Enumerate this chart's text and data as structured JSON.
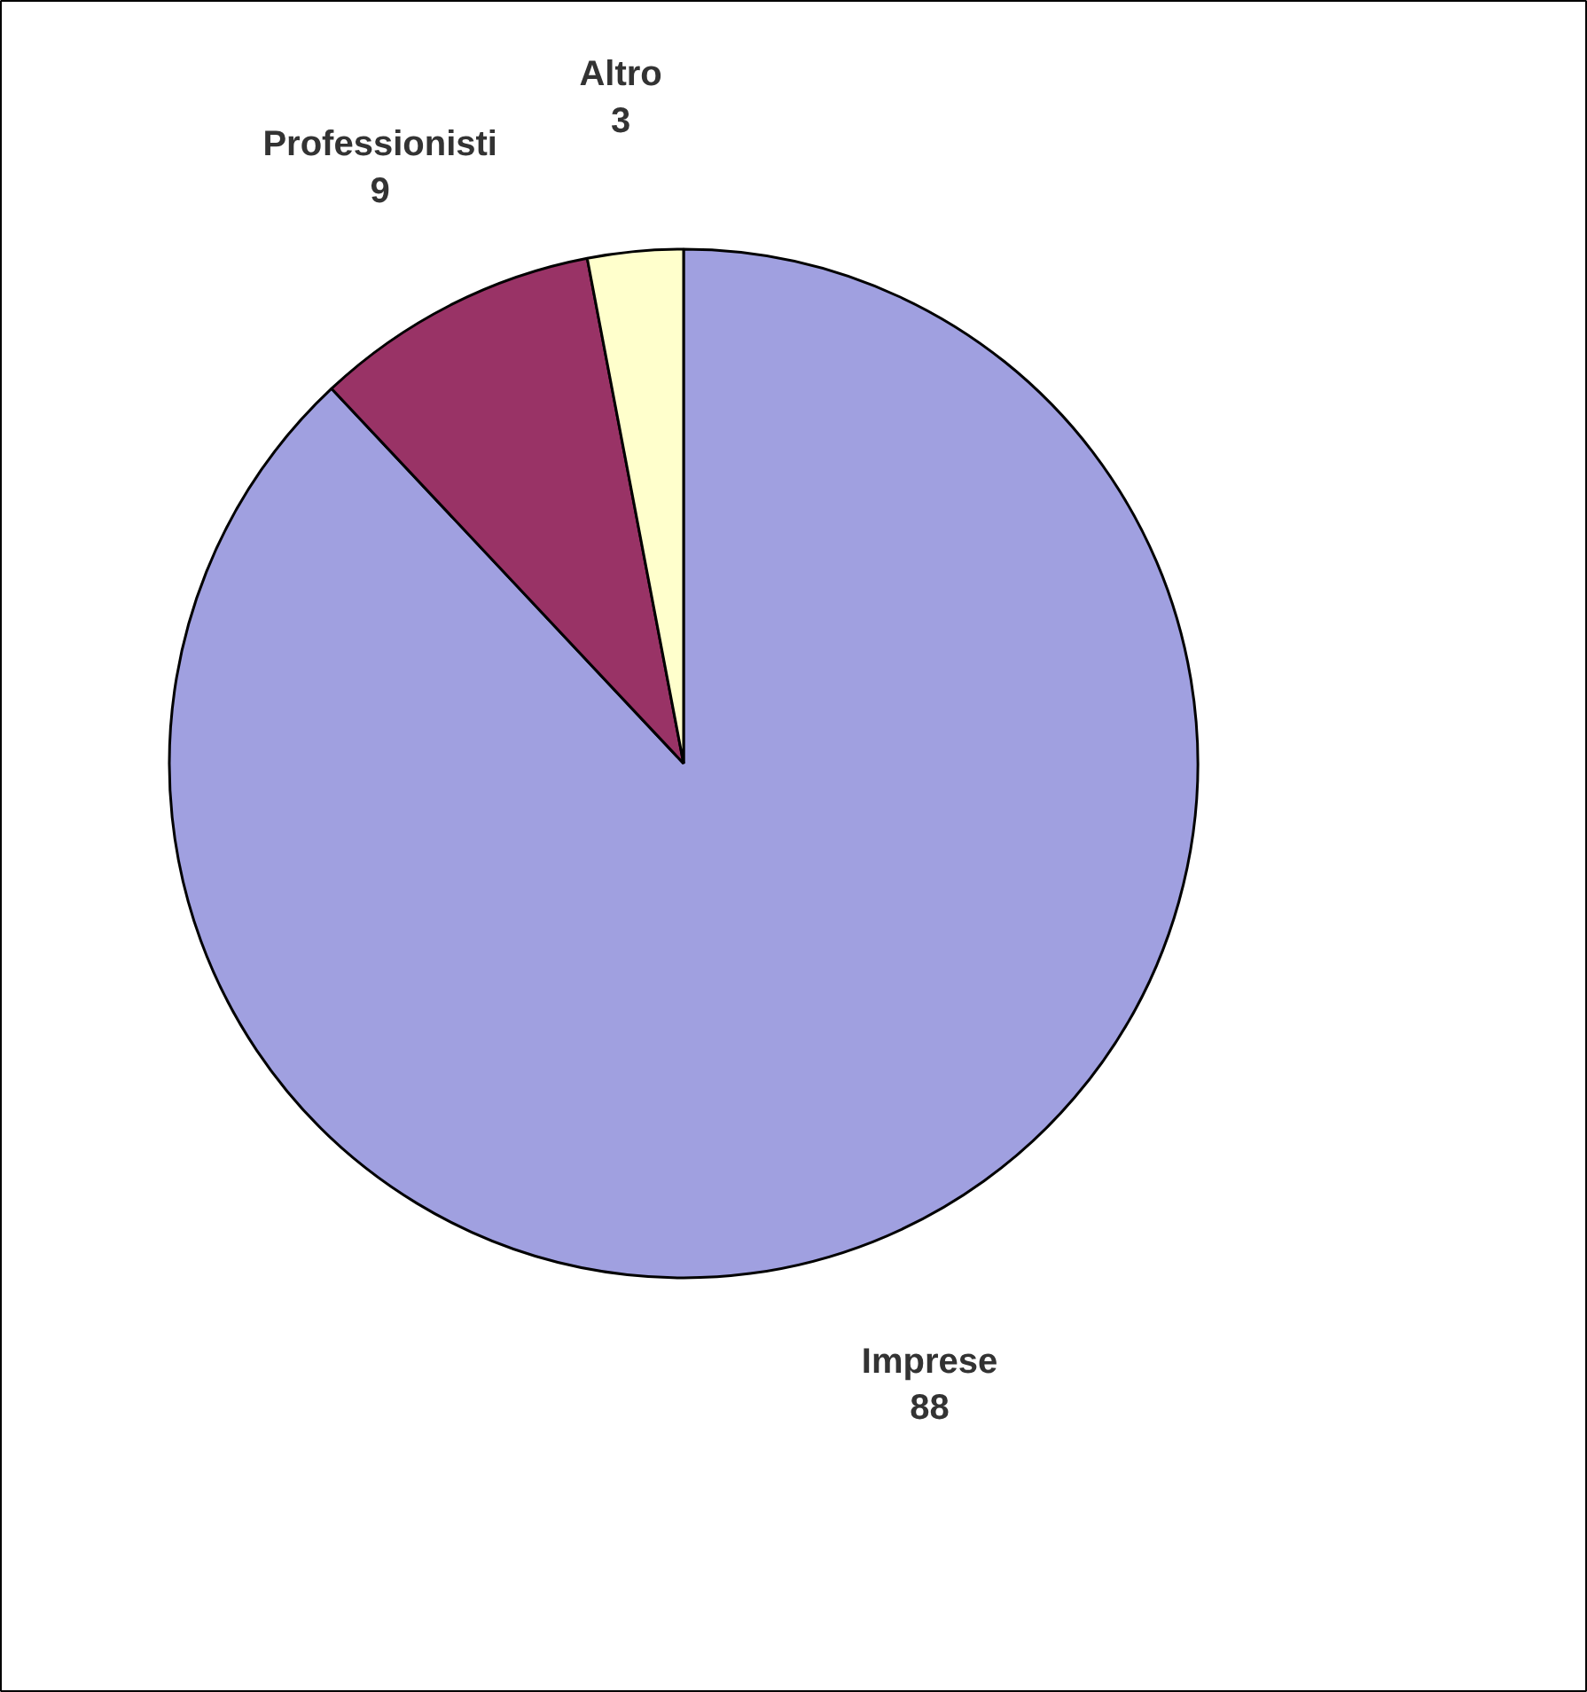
{
  "chart_data": {
    "type": "pie",
    "categories": [
      "Imprese",
      "Professionisti",
      "Altro"
    ],
    "values": [
      88,
      9,
      3
    ],
    "colors": [
      "#a0a0e0",
      "#993366",
      "#ffffcc"
    ],
    "data_labels": true
  }
}
